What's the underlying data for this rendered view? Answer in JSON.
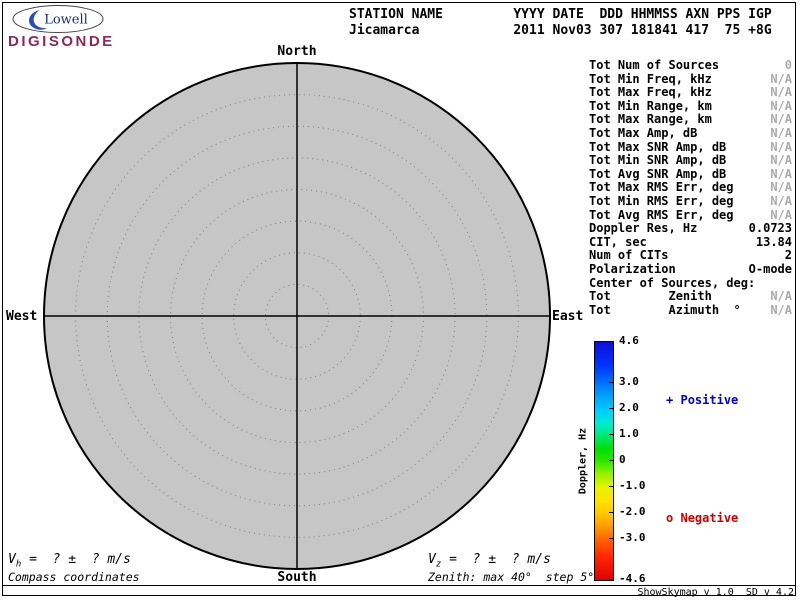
{
  "logo": {
    "brand": "Lowell",
    "product": "DIGISONDE",
    "brand_color": "#1c2f6e",
    "product_color": "#8a2a5a",
    "swoosh_color": "#2a4db0"
  },
  "header": {
    "columns": "STATION NAME         YYYY DATE  DDD HHMMSS AXN PPS IGP",
    "values": "Jicamarca            2011 Nov03 307 181841 417  75 +8G"
  },
  "compass": {
    "north": "North",
    "south": "South",
    "east": "East",
    "west": "West"
  },
  "stats": {
    "rows": [
      {
        "label": "Tot Num of Sources",
        "value": "0",
        "dim": true
      },
      {
        "label": "Tot Min Freq, kHz",
        "value": "N/A",
        "dim": true
      },
      {
        "label": "Tot Max Freq, kHz",
        "value": "N/A",
        "dim": true
      },
      {
        "label": "Tot Min Range, km",
        "value": "N/A",
        "dim": true
      },
      {
        "label": "Tot Max Range, km",
        "value": "N/A",
        "dim": true
      },
      {
        "label": "Tot Max Amp, dB",
        "value": "N/A",
        "dim": true
      },
      {
        "label": "Tot Max SNR Amp, dB",
        "value": "N/A",
        "dim": true
      },
      {
        "label": "Tot Min SNR Amp, dB",
        "value": "N/A",
        "dim": true
      },
      {
        "label": "Tot Avg SNR Amp, dB",
        "value": "N/A",
        "dim": true
      },
      {
        "label": "Tot Max RMS Err, deg",
        "value": "N/A",
        "dim": true
      },
      {
        "label": "Tot Min RMS Err, deg",
        "value": "N/A",
        "dim": true
      },
      {
        "label": "Tot Avg RMS Err, deg",
        "value": "N/A",
        "dim": true
      },
      {
        "label": "Doppler Res, Hz",
        "value": "0.0723",
        "dim": false
      },
      {
        "label": "CIT, sec",
        "value": "13.84",
        "dim": false
      },
      {
        "label": "Num of CITs",
        "value": "2",
        "dim": false
      },
      {
        "label": "Polarization",
        "value": "O-mode",
        "dim": false
      },
      {
        "label": "Center of Sources, deg:",
        "value": "",
        "dim": false
      },
      {
        "label": "Tot        Zenith",
        "value": "N/A",
        "dim": true
      },
      {
        "label": "Tot        Azimuth  °",
        "value": "N/A",
        "dim": true
      }
    ]
  },
  "colorbar": {
    "title": "Doppler, Hz",
    "ticks": [
      "4.6",
      "3.0",
      "2.0",
      "1.0",
      "0",
      "-1.0",
      "-2.0",
      "-3.0",
      "-4.6"
    ],
    "range": [
      -4.6,
      4.6
    ],
    "gradient": [
      "#0f0fd6 0%",
      "#0033ff 10%",
      "#008cff 20%",
      "#00c8ff 28%",
      "#00ecd4 34%",
      "#00e87a 39%",
      "#00e000 45%",
      "#2ce600 50%",
      "#90f000 55%",
      "#e8f400 61%",
      "#ffe000 67%",
      "#ffc800 72%",
      "#ff9600 78%",
      "#ff6400 83%",
      "#ff2800 90%",
      "#e00000 100%"
    ]
  },
  "legend": {
    "positive_marker": "+",
    "positive_label": "Positive",
    "negative_marker": "o",
    "negative_label": "Negative",
    "positive_color": "#0000cd",
    "negative_color": "#cc0000"
  },
  "footer": {
    "vh_prefix": "V",
    "vh_sub": "h",
    "vh_rest": " =  ? ±  ? m/s",
    "vz_prefix": "V",
    "vz_sub": "z",
    "vz_rest": " =  ? ±  ? m/s",
    "coords_note": "Compass coordinates",
    "zenith_note": "Zenith: max 40°  step 5°",
    "version": "ShowSkymap v 1.0  SD v 4.2"
  }
}
